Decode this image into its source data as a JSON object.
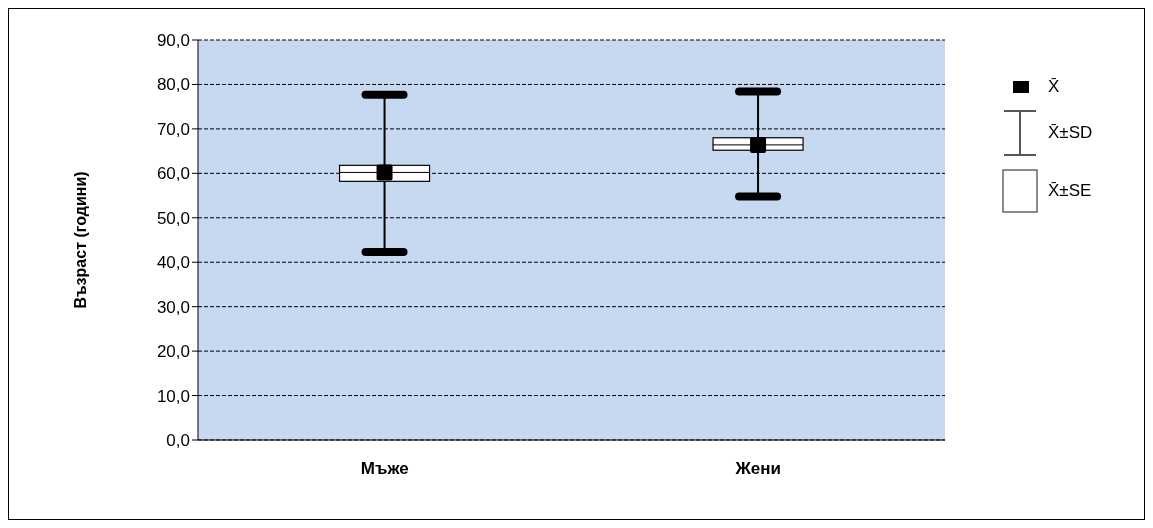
{
  "chart_data": {
    "type": "box",
    "categories": [
      "Мъже",
      "Жени"
    ],
    "boxes": [
      {
        "low": 42.3,
        "q1": 58.2,
        "median": 60.2,
        "q3": 61.8,
        "high": 77.7,
        "mean": 60.2
      },
      {
        "low": 54.8,
        "q1": 65.2,
        "median": 66.4,
        "q3": 68.0,
        "high": 78.4,
        "mean": 66.4
      }
    ],
    "ylabel": "Възраст (години)",
    "ylim": [
      0,
      90
    ],
    "yticks": [
      {
        "value": 0,
        "label": "0,0"
      },
      {
        "value": 10,
        "label": "10,0"
      },
      {
        "value": 20,
        "label": "20,0"
      },
      {
        "value": 30,
        "label": "30,0"
      },
      {
        "value": 40,
        "label": "40,0"
      },
      {
        "value": 50,
        "label": "50,0"
      },
      {
        "value": 60,
        "label": "60,0"
      },
      {
        "value": 70,
        "label": "70,0"
      },
      {
        "value": 80,
        "label": "80,0"
      },
      {
        "value": 90,
        "label": "90,0"
      }
    ],
    "grid": "y",
    "annotations": [
      "X̄",
      "X̄±SD",
      "X̄±SE"
    ]
  }
}
